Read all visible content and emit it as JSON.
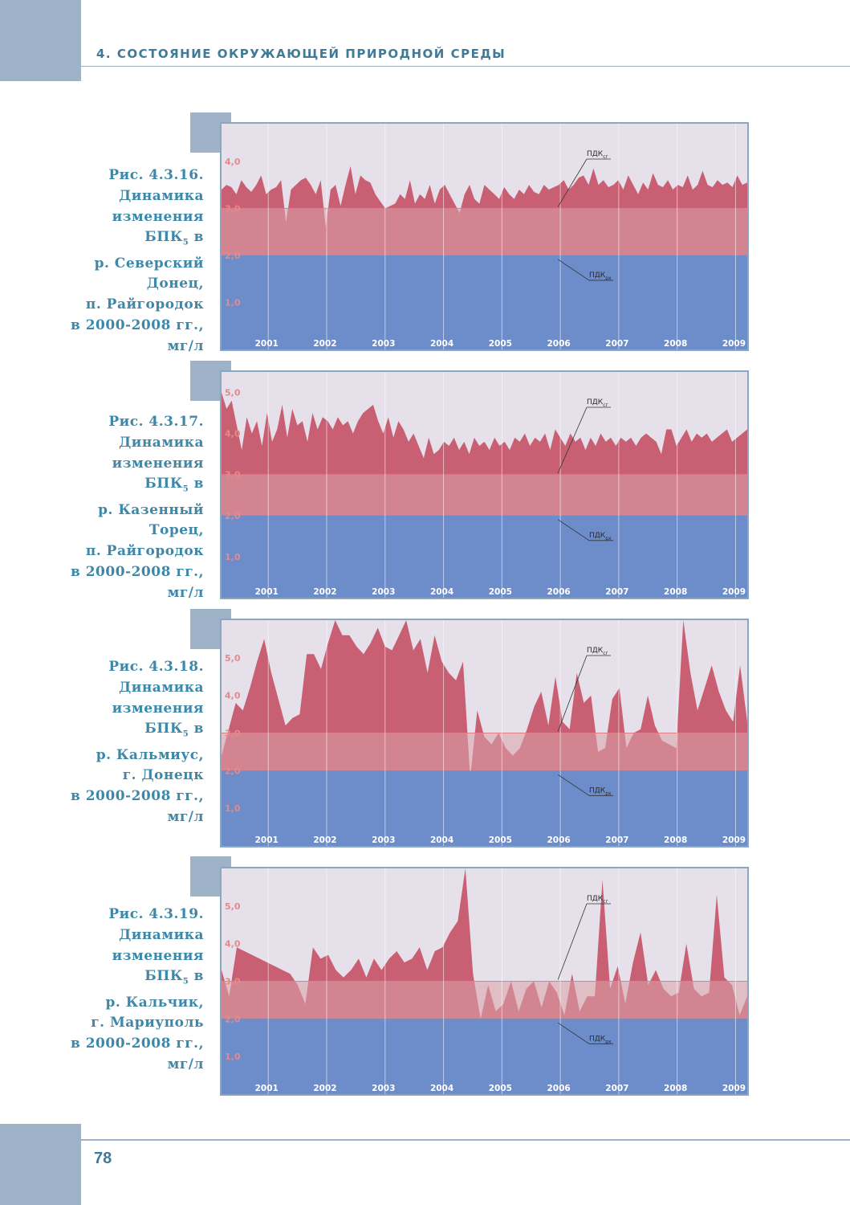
{
  "header": {
    "title": "4. СОСТОЯНИЕ ОКРУЖАЮЩЕЙ ПРИРОДНОЙ СРЕДЫ"
  },
  "footer": {
    "page_number": "78"
  },
  "colors": {
    "accent": "#9eb2c8",
    "caption": "#3d88a8",
    "series": "#c95f73",
    "band_low": "#6d8cca",
    "band_mid": "#d08a92",
    "background": "#e6e0ea"
  },
  "figures": [
    {
      "caption_lines": [
        "Рис. 4.3.16.",
        "Динамика",
        "изменения",
        "БПК|5| в",
        "р. Северский",
        "Донец,",
        "п. Райгородок",
        "в 2000-2008 гг.,",
        "мг/л"
      ]
    },
    {
      "caption_lines": [
        "Рис. 4.3.17.",
        "Динамика",
        "изменения",
        "БПК|5| в",
        "р. Казенный",
        "Торец,",
        "п. Райгородок",
        "в 2000-2008 гг.,",
        "мг/л"
      ]
    },
    {
      "caption_lines": [
        "Рис. 4.3.18.",
        "Динамика",
        "изменения",
        "БПК|5| в",
        "р. Кальмиус,",
        "г. Донецк",
        "в 2000-2008 гг.,",
        "мг/л"
      ]
    },
    {
      "caption_lines": [
        "Рис. 4.3.19.",
        "Динамика",
        "изменения",
        "БПК|5| в",
        "р. Кальчик,",
        "г. Мариуполь",
        "в 2000-2008 гг.,",
        "мг/л"
      ]
    }
  ],
  "chart_data": [
    {
      "type": "area",
      "x_start": 2000.2,
      "x_end": 2009.2,
      "ylim": [
        0,
        4.8
      ],
      "yticks": [
        1.0,
        2.0,
        3.0,
        4.0
      ],
      "ytick_labels": [
        "1,0",
        "2,0",
        "3,0",
        "4,0"
      ],
      "xtick_labels": [
        "2001",
        "2002",
        "2003",
        "2004",
        "2005",
        "2006",
        "2007",
        "2008",
        "2009"
      ],
      "threshold_rx": 2.0,
      "threshold_sg": 3.0,
      "annotation_sg": "ПДК",
      "annotation_sg_sub": "сг",
      "annotation_rx": "ПДК",
      "annotation_rx_sub": "рх",
      "values": [
        3.4,
        3.5,
        3.45,
        3.3,
        3.6,
        3.45,
        3.35,
        3.5,
        3.7,
        3.3,
        3.4,
        3.45,
        3.6,
        2.7,
        3.4,
        3.5,
        3.6,
        3.65,
        3.5,
        3.3,
        3.6,
        2.6,
        3.4,
        3.5,
        3.05,
        3.5,
        3.9,
        3.3,
        3.7,
        3.6,
        3.55,
        3.3,
        3.15,
        3.0,
        3.05,
        3.1,
        3.3,
        3.2,
        3.6,
        3.1,
        3.3,
        3.2,
        3.5,
        3.1,
        3.4,
        3.5,
        3.3,
        3.1,
        2.9,
        3.3,
        3.5,
        3.2,
        3.1,
        3.5,
        3.4,
        3.3,
        3.2,
        3.45,
        3.3,
        3.2,
        3.4,
        3.3,
        3.5,
        3.35,
        3.3,
        3.5,
        3.4,
        3.45,
        3.5,
        3.6,
        3.4,
        3.5,
        3.65,
        3.7,
        3.5,
        3.85,
        3.5,
        3.6,
        3.45,
        3.5,
        3.6,
        3.4,
        3.7,
        3.5,
        3.3,
        3.55,
        3.4,
        3.75,
        3.5,
        3.45,
        3.6,
        3.4,
        3.5,
        3.45,
        3.7,
        3.4,
        3.5,
        3.8,
        3.5,
        3.45,
        3.6,
        3.5,
        3.55,
        3.45,
        3.7,
        3.5,
        3.55
      ]
    },
    {
      "type": "area",
      "x_start": 2000.2,
      "x_end": 2009.2,
      "ylim": [
        0,
        5.5
      ],
      "yticks": [
        1.0,
        2.0,
        3.0,
        4.0,
        5.0
      ],
      "ytick_labels": [
        "1,0",
        "2,0",
        "3,0",
        "4,0",
        "5,0"
      ],
      "xtick_labels": [
        "2001",
        "2002",
        "2003",
        "2004",
        "2005",
        "2006",
        "2007",
        "2008",
        "2009"
      ],
      "threshold_rx": 2.0,
      "threshold_sg": 3.0,
      "annotation_sg": "ПДК",
      "annotation_sg_sub": "сг",
      "annotation_rx": "ПДК",
      "annotation_rx_sub": "рх",
      "values": [
        5.0,
        4.6,
        4.8,
        4.2,
        3.6,
        4.4,
        4.0,
        4.3,
        3.7,
        4.5,
        3.8,
        4.1,
        4.7,
        3.9,
        4.6,
        4.2,
        4.3,
        3.8,
        4.5,
        4.1,
        4.4,
        4.3,
        4.1,
        4.4,
        4.2,
        4.3,
        4.0,
        4.3,
        4.5,
        4.6,
        4.7,
        4.3,
        4.0,
        4.4,
        3.9,
        4.3,
        4.1,
        3.8,
        4.0,
        3.7,
        3.4,
        3.9,
        3.5,
        3.6,
        3.8,
        3.7,
        3.9,
        3.6,
        3.8,
        3.5,
        3.9,
        3.7,
        3.8,
        3.6,
        3.9,
        3.7,
        3.8,
        3.6,
        3.9,
        3.8,
        4.0,
        3.7,
        3.9,
        3.8,
        4.0,
        3.6,
        4.1,
        3.9,
        3.7,
        4.0,
        3.8,
        3.9,
        3.6,
        3.9,
        3.7,
        4.0,
        3.8,
        3.9,
        3.7,
        3.9,
        3.8,
        3.9,
        3.7,
        3.9,
        4.0,
        3.9,
        3.8,
        3.5,
        4.1,
        4.1,
        3.7,
        3.9,
        4.1,
        3.8,
        4.0,
        3.9,
        4.0,
        3.8,
        3.9,
        4.0,
        4.1,
        3.8,
        3.9,
        4.0,
        4.1
      ]
    },
    {
      "type": "area",
      "x_start": 2000.2,
      "x_end": 2009.2,
      "ylim": [
        0,
        6.0
      ],
      "yticks": [
        1.0,
        2.0,
        3.0,
        4.0,
        5.0
      ],
      "ytick_labels": [
        "1,0",
        "2,0",
        "3,0",
        "4,0",
        "5,0"
      ],
      "xtick_labels": [
        "2001",
        "2002",
        "2003",
        "2004",
        "2005",
        "2006",
        "2007",
        "2008",
        "2009"
      ],
      "threshold_rx": 2.0,
      "threshold_sg": 3.0,
      "annotation_sg": "ПДК",
      "annotation_sg_sub": "сг",
      "annotation_rx": "ПДК",
      "annotation_rx_sub": "рх",
      "values": [
        2.4,
        3.1,
        3.8,
        3.6,
        4.2,
        4.9,
        5.5,
        4.6,
        3.9,
        3.2,
        3.4,
        3.5,
        5.1,
        5.1,
        4.7,
        5.4,
        6.0,
        5.6,
        5.6,
        5.3,
        5.1,
        5.4,
        5.8,
        5.3,
        5.2,
        5.6,
        6.0,
        5.2,
        5.5,
        4.6,
        5.6,
        4.9,
        4.6,
        4.4,
        4.9,
        1.8,
        3.6,
        2.9,
        2.7,
        3.0,
        2.6,
        2.4,
        2.6,
        3.1,
        3.7,
        4.1,
        3.2,
        4.5,
        3.3,
        3.1,
        4.6,
        3.8,
        4.0,
        2.5,
        2.6,
        3.9,
        4.2,
        2.6,
        3.0,
        3.1,
        4.0,
        3.2,
        2.8,
        2.7,
        2.6,
        6.0,
        4.6,
        3.6,
        4.2,
        4.8,
        4.1,
        3.6,
        3.3,
        4.8,
        3.3
      ]
    },
    {
      "type": "area",
      "x_start": 2000.2,
      "x_end": 2009.2,
      "ylim": [
        0,
        6.0
      ],
      "yticks": [
        1.0,
        2.0,
        3.0,
        4.0,
        5.0
      ],
      "ytick_labels": [
        "1,0",
        "2,0",
        "3,0",
        "4,0",
        "5,0"
      ],
      "xtick_labels": [
        "2001",
        "2002",
        "2003",
        "2004",
        "2005",
        "2006",
        "2007",
        "2008",
        "2009"
      ],
      "threshold_rx": 2.0,
      "threshold_sg": 3.0,
      "annotation_sg": "ПДК",
      "annotation_sg_sub": "сг",
      "annotation_rx": "ПДК",
      "annotation_rx_sub": "рх",
      "values": [
        3.3,
        2.6,
        3.9,
        3.8,
        3.7,
        3.6,
        3.5,
        3.4,
        3.3,
        3.2,
        2.9,
        2.4,
        3.9,
        3.6,
        3.7,
        3.3,
        3.1,
        3.3,
        3.6,
        3.1,
        3.6,
        3.3,
        3.6,
        3.8,
        3.5,
        3.6,
        3.9,
        3.3,
        3.8,
        3.9,
        4.3,
        4.6,
        6.0,
        3.2,
        2.0,
        2.9,
        2.2,
        2.4,
        3.0,
        2.2,
        2.8,
        3.0,
        2.3,
        3.0,
        2.7,
        2.1,
        3.2,
        2.2,
        2.6,
        2.6,
        5.7,
        2.8,
        3.4,
        2.4,
        3.5,
        4.3,
        2.9,
        3.3,
        2.8,
        2.6,
        2.7,
        4.0,
        2.8,
        2.6,
        2.7,
        5.3,
        3.1,
        2.9,
        2.1,
        2.6
      ]
    }
  ]
}
